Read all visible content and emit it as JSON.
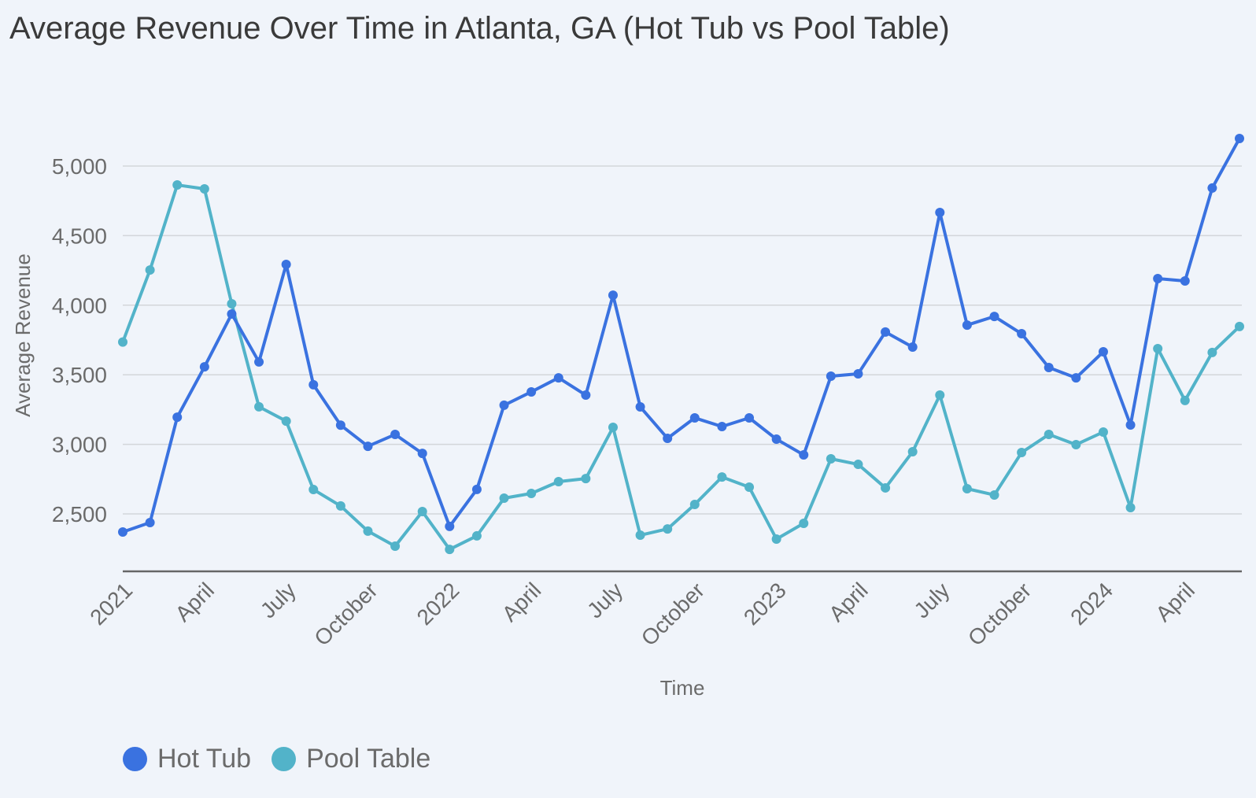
{
  "chart_data": {
    "type": "line",
    "title": "Average Revenue Over Time in Atlanta, GA (Hot Tub vs Pool Table)",
    "xlabel": "Time",
    "ylabel": "Average Revenue",
    "ylim": [
      2087,
      5200
    ],
    "yticks": [
      2500,
      3000,
      3500,
      4000,
      4500,
      5000
    ],
    "ytick_labels": [
      "2,500",
      "3,000",
      "3,500",
      "4,000",
      "4,500",
      "5,000"
    ],
    "grid": true,
    "legend_position": "bottom-left",
    "x": [
      "2021-01",
      "2021-02",
      "2021-03",
      "2021-04",
      "2021-05",
      "2021-06",
      "2021-07",
      "2021-08",
      "2021-09",
      "2021-10",
      "2021-11",
      "2021-12",
      "2022-01",
      "2022-02",
      "2022-03",
      "2022-04",
      "2022-05",
      "2022-06",
      "2022-07",
      "2022-08",
      "2022-09",
      "2022-10",
      "2022-11",
      "2022-12",
      "2023-01",
      "2023-02",
      "2023-03",
      "2023-04",
      "2023-05",
      "2023-06",
      "2023-07",
      "2023-08",
      "2023-09",
      "2023-10",
      "2023-11",
      "2023-12",
      "2024-01",
      "2024-02",
      "2024-03",
      "2024-04",
      "2024-05",
      "2024-06"
    ],
    "xticks": [
      {
        "index": 0,
        "label": "2021"
      },
      {
        "index": 3,
        "label": "April"
      },
      {
        "index": 6,
        "label": "July"
      },
      {
        "index": 9,
        "label": "October"
      },
      {
        "index": 12,
        "label": "2022"
      },
      {
        "index": 15,
        "label": "April"
      },
      {
        "index": 18,
        "label": "July"
      },
      {
        "index": 21,
        "label": "October"
      },
      {
        "index": 24,
        "label": "2023"
      },
      {
        "index": 27,
        "label": "April"
      },
      {
        "index": 30,
        "label": "July"
      },
      {
        "index": 33,
        "label": "October"
      },
      {
        "index": 36,
        "label": "2024"
      },
      {
        "index": 39,
        "label": "April"
      }
    ],
    "series": [
      {
        "name": "Hot Tub",
        "color": "#3a72e0",
        "values": [
          2370,
          2438,
          3195,
          3557,
          3937,
          3592,
          4293,
          3428,
          3138,
          2986,
          3071,
          2935,
          2410,
          2676,
          3281,
          3377,
          3478,
          3354,
          4072,
          3269,
          3043,
          3190,
          3128,
          3190,
          3037,
          2924,
          3490,
          3507,
          3807,
          3699,
          4666,
          3857,
          3919,
          3795,
          3552,
          3478,
          3665,
          3139,
          4191,
          4174,
          4842,
          5198
        ]
      },
      {
        "name": "Pool Table",
        "color": "#52b3c9",
        "values": [
          3735,
          4253,
          4864,
          4836,
          4010,
          3270,
          3167,
          2675,
          2557,
          2376,
          2268,
          2517,
          2245,
          2342,
          2613,
          2647,
          2732,
          2754,
          3122,
          2347,
          2392,
          2568,
          2765,
          2692,
          2319,
          2432,
          2896,
          2856,
          2687,
          2947,
          3354,
          2681,
          2636,
          2941,
          3071,
          2998,
          3088,
          2545,
          3688,
          3315,
          3660,
          3847
        ]
      }
    ]
  }
}
